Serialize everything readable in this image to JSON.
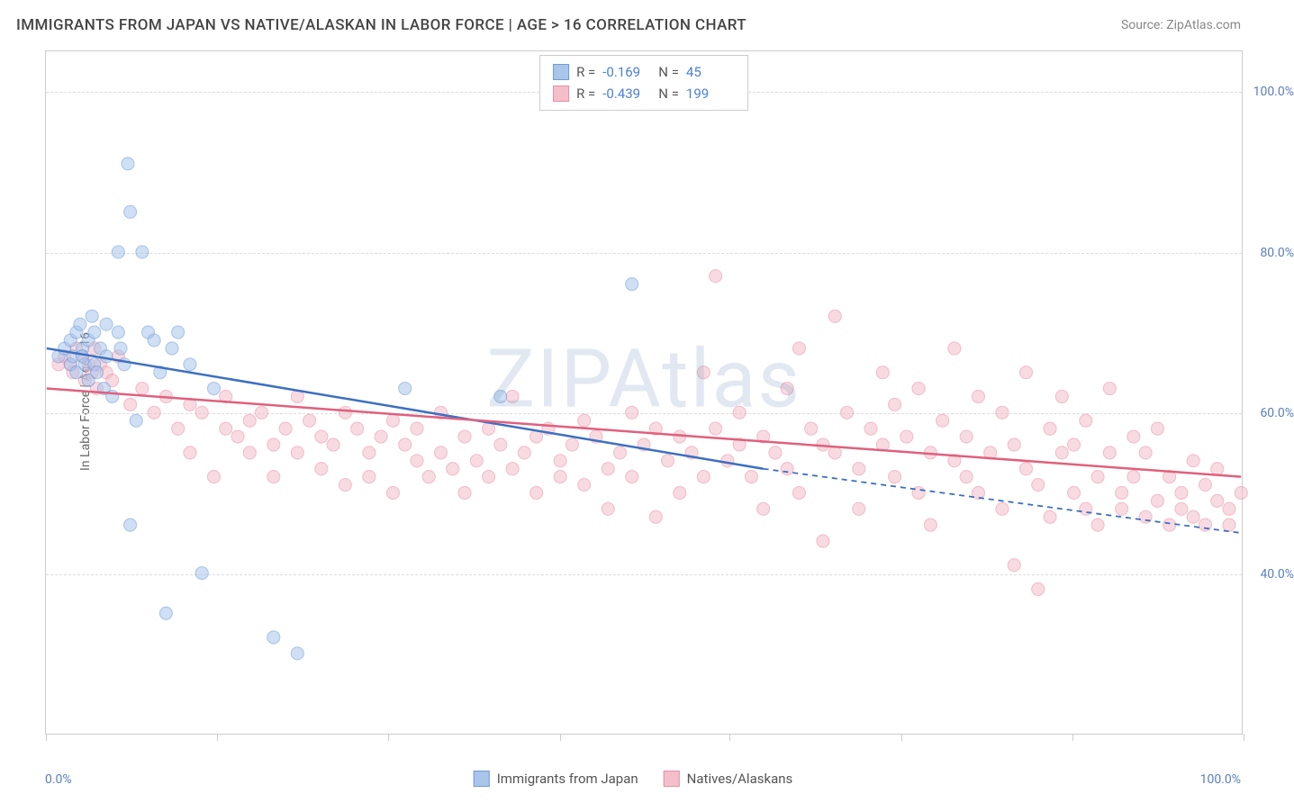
{
  "title": "IMMIGRANTS FROM JAPAN VS NATIVE/ALASKAN IN LABOR FORCE | AGE > 16 CORRELATION CHART",
  "source": "Source: ZipAtlas.com",
  "watermark": "ZIPAtlas",
  "yaxis_title": "In Labor Force | Age > 16",
  "chart": {
    "type": "scatter",
    "xlim": [
      0,
      100
    ],
    "ylim": [
      20,
      105
    ],
    "ytick_values": [
      40,
      60,
      80,
      100
    ],
    "ytick_labels": [
      "40.0%",
      "60.0%",
      "80.0%",
      "100.0%"
    ],
    "xtick_values": [
      0,
      14.3,
      28.6,
      42.9,
      57.1,
      71.4,
      85.7,
      100
    ],
    "x_label_min": "0.0%",
    "x_label_max": "100.0%",
    "grid_color": "#dddddd",
    "background_color": "#ffffff",
    "marker_radius": 7,
    "marker_opacity": 0.55
  },
  "series": [
    {
      "name": "Immigrants from Japan",
      "color_fill": "#a9c5ec",
      "color_stroke": "#6f9bd8",
      "line_color": "#3c6fc2",
      "R": "-0.169",
      "N": "45",
      "trend": {
        "x1": 0,
        "y1": 68,
        "x2": 60,
        "y2": 53,
        "x2_ext": 100,
        "y2_ext": 45
      },
      "points": [
        [
          1,
          67
        ],
        [
          1.5,
          68
        ],
        [
          2,
          66
        ],
        [
          2,
          69
        ],
        [
          2.2,
          67
        ],
        [
          2.5,
          70
        ],
        [
          2.5,
          65
        ],
        [
          2.8,
          71
        ],
        [
          3,
          68
        ],
        [
          3,
          67
        ],
        [
          3.2,
          66
        ],
        [
          3.5,
          69
        ],
        [
          3.5,
          64
        ],
        [
          3.8,
          72
        ],
        [
          4,
          70
        ],
        [
          4,
          66
        ],
        [
          4.2,
          65
        ],
        [
          4.5,
          68
        ],
        [
          4.8,
          63
        ],
        [
          5,
          71
        ],
        [
          5,
          67
        ],
        [
          5.5,
          62
        ],
        [
          6,
          70
        ],
        [
          6,
          80
        ],
        [
          6.2,
          68
        ],
        [
          6.5,
          66
        ],
        [
          6.8,
          91
        ],
        [
          7,
          85
        ],
        [
          7,
          46
        ],
        [
          7.5,
          59
        ],
        [
          8,
          80
        ],
        [
          8.5,
          70
        ],
        [
          9,
          69
        ],
        [
          9.5,
          65
        ],
        [
          10,
          35
        ],
        [
          10.5,
          68
        ],
        [
          11,
          70
        ],
        [
          12,
          66
        ],
        [
          13,
          40
        ],
        [
          14,
          63
        ],
        [
          19,
          32
        ],
        [
          21,
          30
        ],
        [
          30,
          63
        ],
        [
          38,
          62
        ],
        [
          49,
          76
        ]
      ]
    },
    {
      "name": "Natives/Alaskans",
      "color_fill": "#f4bfcb",
      "color_stroke": "#e88fa3",
      "line_color": "#e0607e",
      "R": "-0.439",
      "N": "199",
      "trend": {
        "x1": 0,
        "y1": 63,
        "x2": 100,
        "y2": 52
      },
      "points": [
        [
          1,
          66
        ],
        [
          1.5,
          67
        ],
        [
          2,
          66
        ],
        [
          2.2,
          65
        ],
        [
          2.5,
          68
        ],
        [
          3,
          67
        ],
        [
          3.2,
          64
        ],
        [
          3.5,
          66
        ],
        [
          3.8,
          65
        ],
        [
          4,
          68
        ],
        [
          4.2,
          63
        ],
        [
          4.5,
          66
        ],
        [
          5,
          65
        ],
        [
          5.5,
          64
        ],
        [
          6,
          67
        ],
        [
          7,
          61
        ],
        [
          8,
          63
        ],
        [
          9,
          60
        ],
        [
          10,
          62
        ],
        [
          11,
          58
        ],
        [
          12,
          61
        ],
        [
          12,
          55
        ],
        [
          13,
          60
        ],
        [
          14,
          52
        ],
        [
          15,
          58
        ],
        [
          15,
          62
        ],
        [
          16,
          57
        ],
        [
          17,
          59
        ],
        [
          17,
          55
        ],
        [
          18,
          60
        ],
        [
          19,
          56
        ],
        [
          19,
          52
        ],
        [
          20,
          58
        ],
        [
          21,
          55
        ],
        [
          21,
          62
        ],
        [
          22,
          59
        ],
        [
          23,
          53
        ],
        [
          23,
          57
        ],
        [
          24,
          56
        ],
        [
          25,
          60
        ],
        [
          25,
          51
        ],
        [
          26,
          58
        ],
        [
          27,
          55
        ],
        [
          27,
          52
        ],
        [
          28,
          57
        ],
        [
          29,
          59
        ],
        [
          29,
          50
        ],
        [
          30,
          56
        ],
        [
          31,
          54
        ],
        [
          31,
          58
        ],
        [
          32,
          52
        ],
        [
          33,
          55
        ],
        [
          33,
          60
        ],
        [
          34,
          53
        ],
        [
          35,
          57
        ],
        [
          35,
          50
        ],
        [
          36,
          54
        ],
        [
          37,
          58
        ],
        [
          37,
          52
        ],
        [
          38,
          56
        ],
        [
          39,
          53
        ],
        [
          39,
          62
        ],
        [
          40,
          55
        ],
        [
          41,
          57
        ],
        [
          41,
          50
        ],
        [
          42,
          58
        ],
        [
          43,
          54
        ],
        [
          43,
          52
        ],
        [
          44,
          56
        ],
        [
          45,
          59
        ],
        [
          45,
          51
        ],
        [
          46,
          57
        ],
        [
          47,
          53
        ],
        [
          47,
          48
        ],
        [
          48,
          55
        ],
        [
          49,
          60
        ],
        [
          49,
          52
        ],
        [
          50,
          56
        ],
        [
          51,
          47
        ],
        [
          51,
          58
        ],
        [
          52,
          54
        ],
        [
          53,
          57
        ],
        [
          53,
          50
        ],
        [
          54,
          55
        ],
        [
          55,
          65
        ],
        [
          55,
          52
        ],
        [
          56,
          58
        ],
        [
          56,
          77
        ],
        [
          57,
          54
        ],
        [
          58,
          56
        ],
        [
          58,
          60
        ],
        [
          59,
          52
        ],
        [
          60,
          57
        ],
        [
          60,
          48
        ],
        [
          61,
          55
        ],
        [
          62,
          63
        ],
        [
          62,
          53
        ],
        [
          63,
          68
        ],
        [
          63,
          50
        ],
        [
          64,
          58
        ],
        [
          65,
          56
        ],
        [
          65,
          44
        ],
        [
          66,
          72
        ],
        [
          66,
          55
        ],
        [
          67,
          60
        ],
        [
          68,
          53
        ],
        [
          68,
          48
        ],
        [
          69,
          58
        ],
        [
          70,
          56
        ],
        [
          70,
          65
        ],
        [
          71,
          52
        ],
        [
          71,
          61
        ],
        [
          72,
          57
        ],
        [
          73,
          50
        ],
        [
          73,
          63
        ],
        [
          74,
          55
        ],
        [
          74,
          46
        ],
        [
          75,
          59
        ],
        [
          76,
          54
        ],
        [
          76,
          68
        ],
        [
          77,
          52
        ],
        [
          77,
          57
        ],
        [
          78,
          50
        ],
        [
          78,
          62
        ],
        [
          79,
          55
        ],
        [
          80,
          48
        ],
        [
          80,
          60
        ],
        [
          81,
          41
        ],
        [
          81,
          56
        ],
        [
          82,
          53
        ],
        [
          82,
          65
        ],
        [
          83,
          51
        ],
        [
          83,
          38
        ],
        [
          84,
          58
        ],
        [
          84,
          47
        ],
        [
          85,
          55
        ],
        [
          85,
          62
        ],
        [
          86,
          50
        ],
        [
          86,
          56
        ],
        [
          87,
          48
        ],
        [
          87,
          59
        ],
        [
          88,
          52
        ],
        [
          88,
          46
        ],
        [
          89,
          55
        ],
        [
          89,
          63
        ],
        [
          90,
          50
        ],
        [
          90,
          48
        ],
        [
          91,
          57
        ],
        [
          91,
          52
        ],
        [
          92,
          47
        ],
        [
          92,
          55
        ],
        [
          93,
          49
        ],
        [
          93,
          58
        ],
        [
          94,
          46
        ],
        [
          94,
          52
        ],
        [
          95,
          50
        ],
        [
          95,
          48
        ],
        [
          96,
          54
        ],
        [
          96,
          47
        ],
        [
          97,
          51
        ],
        [
          97,
          46
        ],
        [
          98,
          49
        ],
        [
          98,
          53
        ],
        [
          99,
          48
        ],
        [
          99,
          46
        ],
        [
          100,
          50
        ]
      ]
    }
  ],
  "legend_bottom": [
    {
      "label": "Immigrants from Japan",
      "fill": "#a9c5ec",
      "stroke": "#6f9bd8"
    },
    {
      "label": "Natives/Alaskans",
      "fill": "#f4bfcb",
      "stroke": "#e88fa3"
    }
  ]
}
